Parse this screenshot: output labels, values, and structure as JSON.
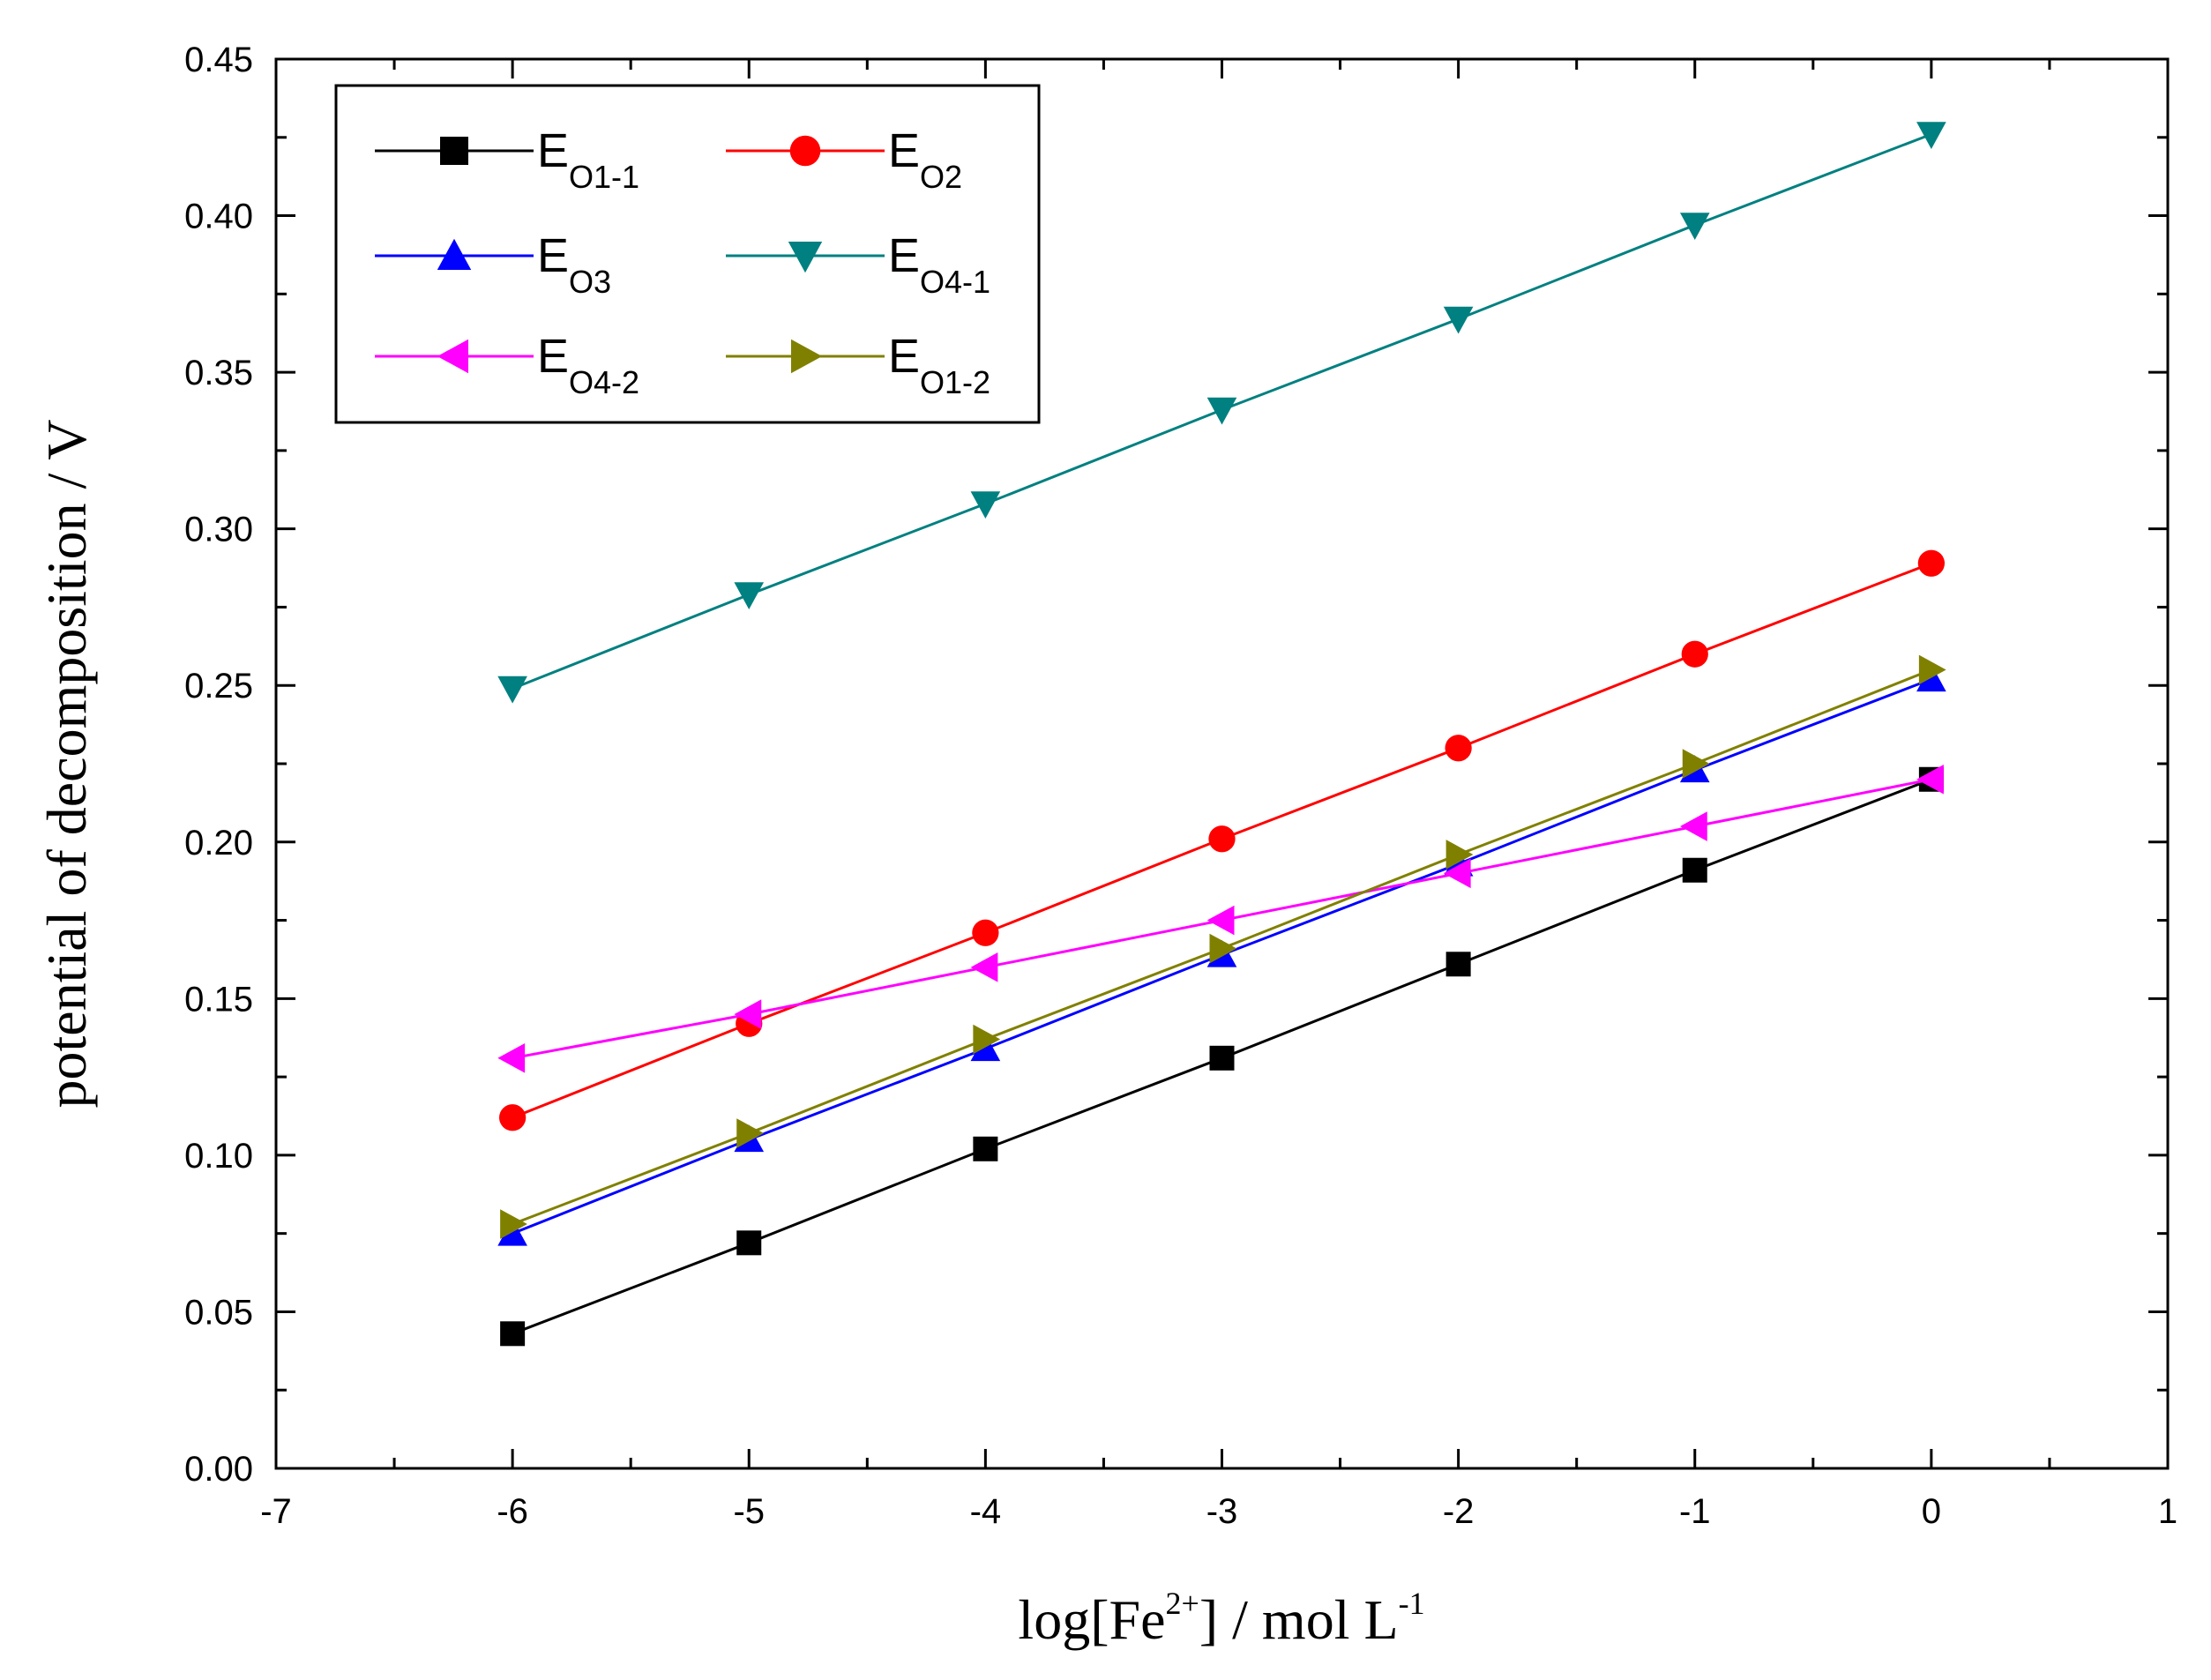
{
  "chart_data": {
    "type": "line",
    "title": "",
    "xlabel": {
      "prefix": "log[Fe",
      "sup": "2+",
      "middle": "] / mol L",
      "sup2": "-1"
    },
    "ylabel": "potential of decomposition / V",
    "xlim": [
      -7,
      1
    ],
    "ylim": [
      0,
      0.45
    ],
    "xticks": [
      "-7",
      "-6",
      "-5",
      "-4",
      "-3",
      "-2",
      "-1",
      "0",
      "1"
    ],
    "yticks": [
      "0.00",
      "0.05",
      "0.10",
      "0.15",
      "0.20",
      "0.25",
      "0.30",
      "0.35",
      "0.40",
      "0.45"
    ],
    "x": [
      -6,
      -5,
      -4,
      -3,
      -2,
      -1,
      0
    ],
    "legend_position": "top-left",
    "series": [
      {
        "name": "E",
        "sub": "O1-1",
        "color": "#000000",
        "marker": "square",
        "values": [
          0.043,
          0.072,
          0.102,
          0.131,
          0.161,
          0.191,
          0.22
        ]
      },
      {
        "name": "E",
        "sub": "O2",
        "color": "#ff0000",
        "marker": "circle",
        "values": [
          0.112,
          0.142,
          0.171,
          0.201,
          0.23,
          0.26,
          0.289
        ]
      },
      {
        "name": "E",
        "sub": "O3",
        "color": "#0000ff",
        "marker": "triangle-up",
        "values": [
          0.075,
          0.105,
          0.134,
          0.164,
          0.193,
          0.223,
          0.252
        ]
      },
      {
        "name": "E",
        "sub": "O4-1",
        "color": "#008080",
        "marker": "triangle-down",
        "values": [
          0.249,
          0.279,
          0.308,
          0.338,
          0.367,
          0.397,
          0.426
        ]
      },
      {
        "name": "E",
        "sub": "O4-2",
        "color": "#ff00ff",
        "marker": "triangle-left",
        "values": [
          0.131,
          0.145,
          0.16,
          0.175,
          0.19,
          0.205,
          0.22
        ]
      },
      {
        "name": "E",
        "sub": "O1-2",
        "color": "#808000",
        "marker": "triangle-right",
        "values": [
          0.078,
          0.107,
          0.137,
          0.166,
          0.196,
          0.225,
          0.255
        ]
      }
    ]
  }
}
